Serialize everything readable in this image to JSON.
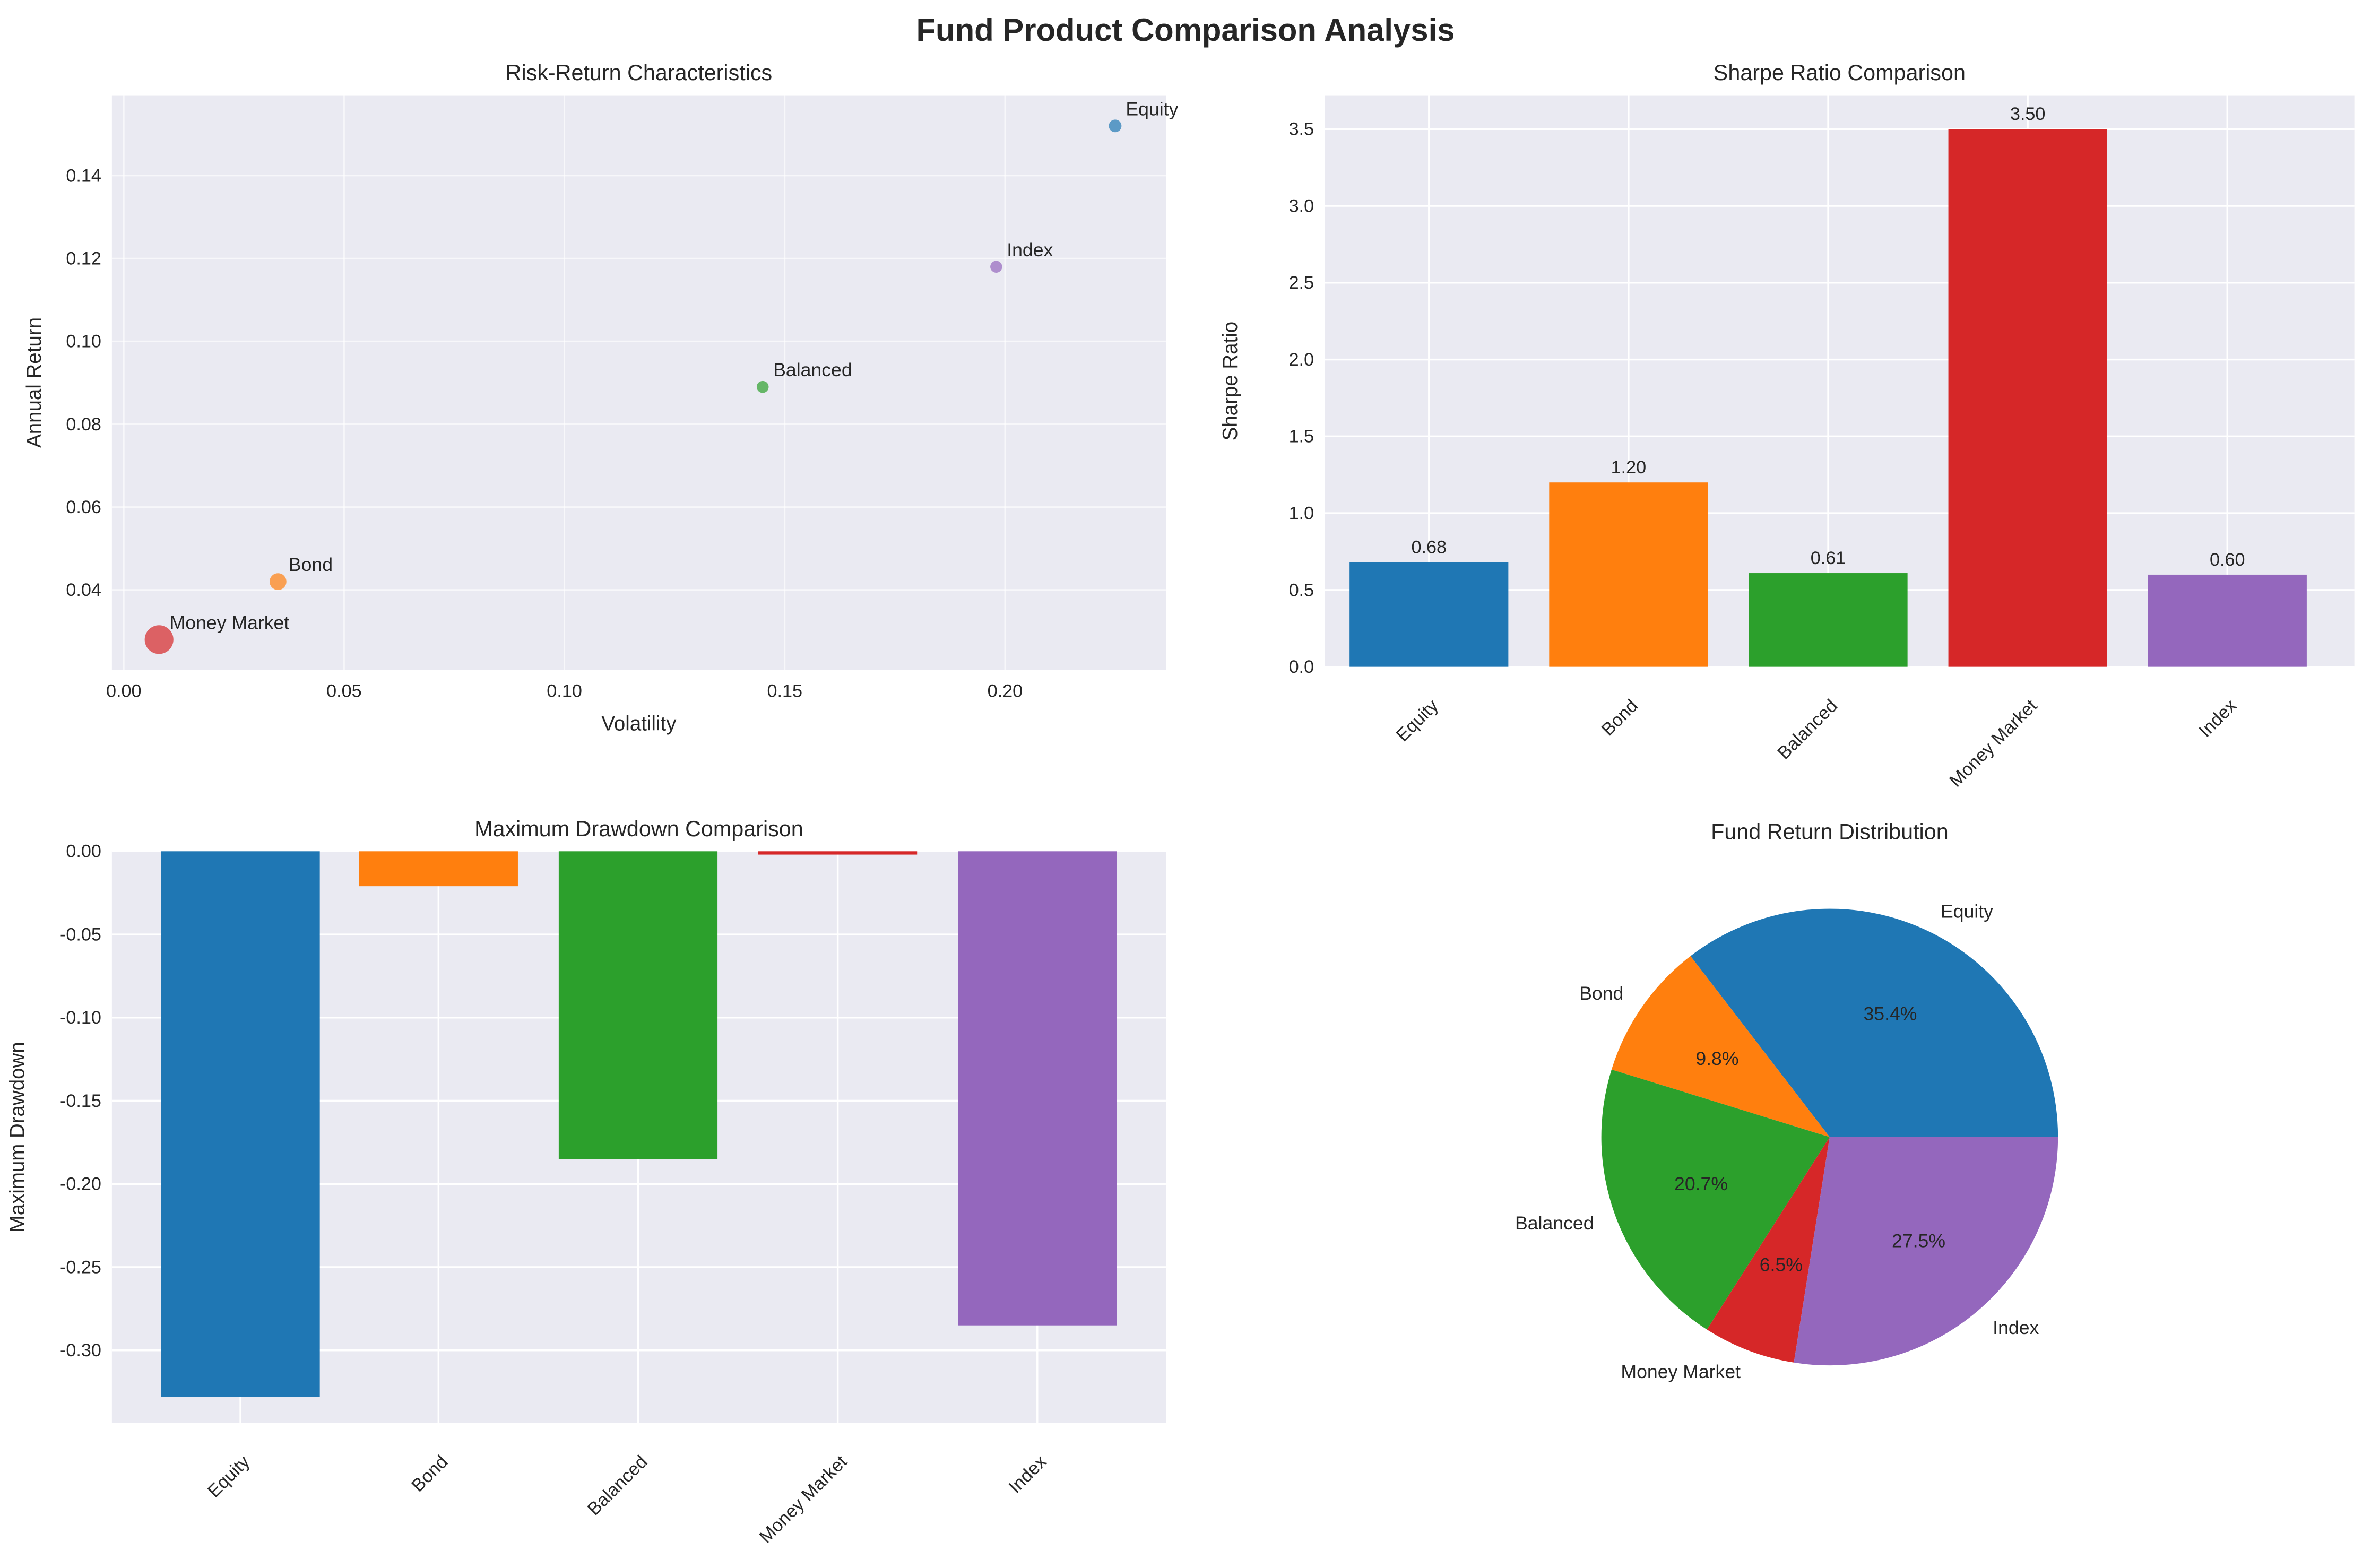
{
  "title": "Fund Product Comparison Analysis",
  "colors": {
    "Equity": "#1f77b4",
    "Bond": "#ff7f0e",
    "Balanced": "#2ca02c",
    "Money Market": "#d62728",
    "Index": "#9467bd",
    "axes_bg": "#EAEAF2",
    "grid": "#ffffff"
  },
  "chart_data": [
    {
      "type": "scatter",
      "title": "Risk-Return Characteristics",
      "xlabel": "Volatility",
      "ylabel": "Annual Return",
      "xlim": [
        -0.0027,
        0.2365
      ],
      "ylim": [
        0.0207,
        0.1594
      ],
      "xticks": [
        "0.00",
        "0.05",
        "0.10",
        "0.15",
        "0.20"
      ],
      "yticks": [
        "0.04",
        "0.06",
        "0.08",
        "0.10",
        "0.12",
        "0.14"
      ],
      "grid": true,
      "points": [
        {
          "label": "Equity",
          "x": 0.225,
          "y": 0.152,
          "size": 0.68
        },
        {
          "label": "Bond",
          "x": 0.035,
          "y": 0.042,
          "size": 1.2
        },
        {
          "label": "Balanced",
          "x": 0.145,
          "y": 0.089,
          "size": 0.61
        },
        {
          "label": "Money Market",
          "x": 0.008,
          "y": 0.028,
          "size": 3.5
        },
        {
          "label": "Index",
          "x": 0.198,
          "y": 0.118,
          "size": 0.6
        }
      ]
    },
    {
      "type": "bar",
      "title": "Sharpe Ratio Comparison",
      "xlabel": "",
      "ylabel": "Sharpe Ratio",
      "categories": [
        "Equity",
        "Bond",
        "Balanced",
        "Money Market",
        "Index"
      ],
      "values": [
        0.68,
        1.2,
        0.61,
        3.5,
        0.6
      ],
      "data_labels": [
        "0.68",
        "1.20",
        "0.61",
        "3.50",
        "0.60"
      ],
      "ylim": [
        0,
        3.72
      ],
      "yticks": [
        "0.0",
        "0.5",
        "1.0",
        "1.5",
        "2.0",
        "2.5",
        "3.0",
        "3.5"
      ],
      "grid": true
    },
    {
      "type": "bar",
      "title": "Maximum Drawdown Comparison",
      "xlabel": "",
      "ylabel": "Maximum Drawdown",
      "categories": [
        "Equity",
        "Bond",
        "Balanced",
        "Money Market",
        "Index"
      ],
      "values": [
        -0.328,
        -0.021,
        -0.185,
        -0.002,
        -0.285
      ],
      "ylim": [
        -0.3436,
        0
      ],
      "yticks": [
        "0.00",
        "-0.05",
        "-0.10",
        "-0.15",
        "-0.20",
        "-0.25",
        "-0.30"
      ],
      "grid": true
    },
    {
      "type": "pie",
      "title": "Fund Return Distribution",
      "labels": [
        "Equity",
        "Bond",
        "Balanced",
        "Money Market",
        "Index"
      ],
      "values": [
        0.152,
        0.042,
        0.089,
        0.028,
        0.118
      ],
      "pct_labels": [
        "35.4%",
        "9.8%",
        "20.7%",
        "6.5%",
        "27.5%"
      ]
    }
  ]
}
